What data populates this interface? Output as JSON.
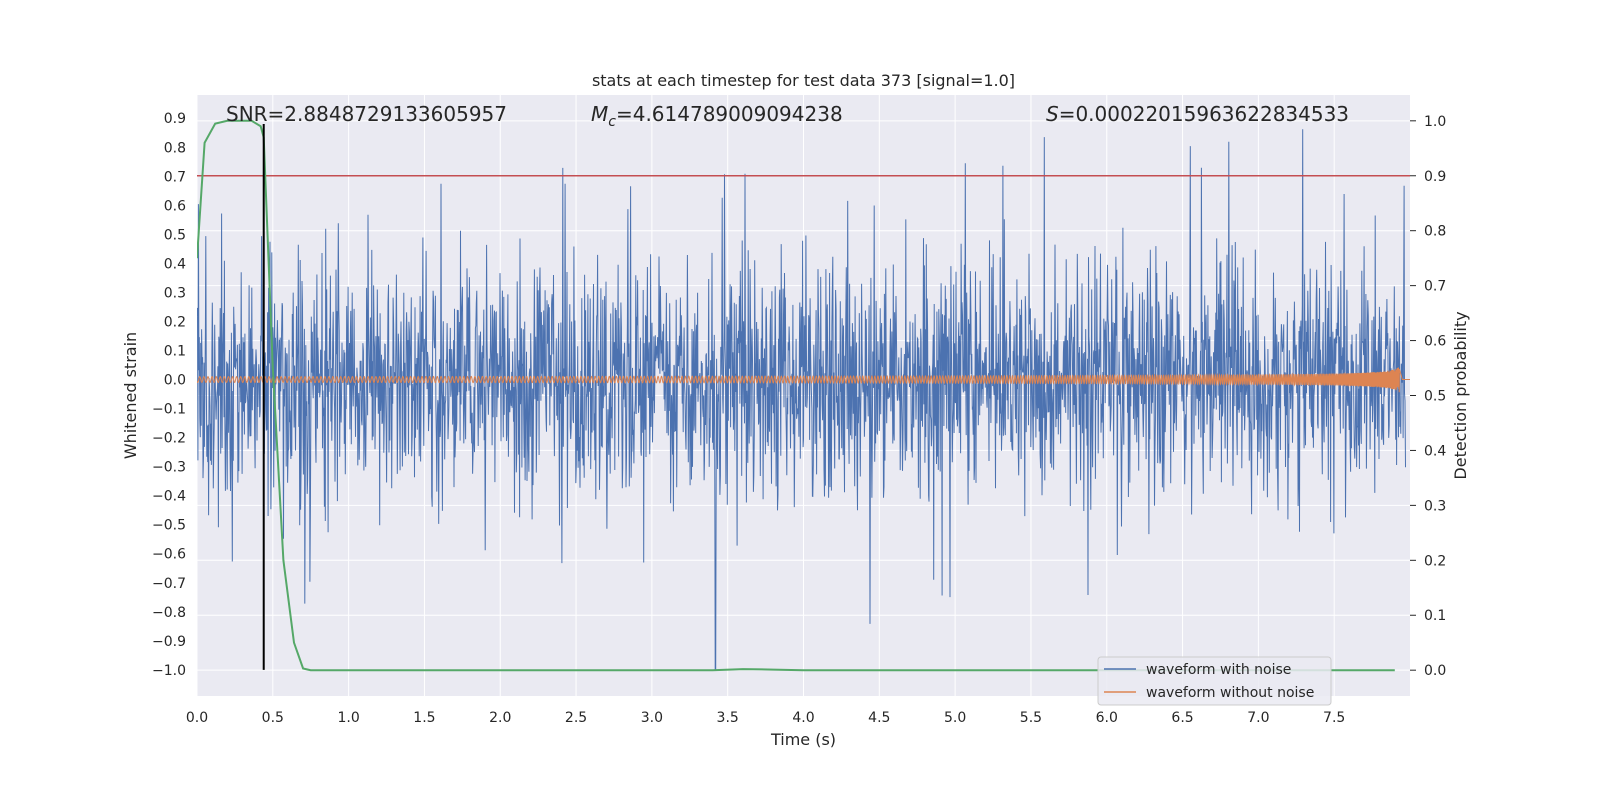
{
  "chart_data": {
    "type": "line",
    "title": "stats at each timestep for test data 373 [signal=1.0]",
    "xlabel": "Time (s)",
    "ylabel": "Whitened strain",
    "y2label": "Detection probability",
    "xlim": [
      0.0,
      8.0
    ],
    "ylim": [
      -1.09,
      0.98
    ],
    "y2lim": [
      -0.047,
      1.047
    ],
    "xticks": [
      0.0,
      0.5,
      1.0,
      1.5,
      2.0,
      2.5,
      3.0,
      3.5,
      4.0,
      4.5,
      5.0,
      5.5,
      6.0,
      6.5,
      7.0,
      7.5
    ],
    "xtick_labels": [
      "0.0",
      "0.5",
      "1.0",
      "1.5",
      "2.0",
      "2.5",
      "3.0",
      "3.5",
      "4.0",
      "4.5",
      "5.0",
      "5.5",
      "6.0",
      "6.5",
      "7.0",
      "7.5"
    ],
    "yticks": [
      0.9,
      0.8,
      0.7,
      0.6,
      0.5,
      0.4,
      0.3,
      0.2,
      0.1,
      0.0,
      -0.1,
      -0.2,
      -0.3,
      -0.4,
      -0.5,
      -0.6,
      -0.7,
      -0.8,
      -0.9,
      -1.0
    ],
    "ytick_labels": [
      "0.9",
      "0.8",
      "0.7",
      "0.6",
      "0.5",
      "0.4",
      "0.3",
      "0.2",
      "0.1",
      "0.0",
      "−0.1",
      "−0.2",
      "−0.3",
      "−0.4",
      "−0.5",
      "−0.6",
      "−0.7",
      "−0.8",
      "−0.9",
      "−1.0"
    ],
    "y2ticks": [
      1.0,
      0.9,
      0.8,
      0.7,
      0.6,
      0.5,
      0.4,
      0.3,
      0.2,
      0.1,
      0.0
    ],
    "y2tick_labels": [
      "1.0",
      "0.9",
      "0.8",
      "0.7",
      "0.6",
      "0.5",
      "0.4",
      "0.3",
      "0.2",
      "0.1",
      "0.0"
    ],
    "grid": true,
    "legend_position": "lower-right",
    "annotations": {
      "snr": "SNR=2.8848729133605957",
      "mc_sym": "M",
      "mc_sub": "c",
      "mc_val": "=4.614789009094238",
      "s_sym": "S",
      "s_val": "=0.00022015963622834533"
    },
    "threshold": {
      "y2": 0.9,
      "color": "#c44e52"
    },
    "marker_line": {
      "x": 0.44,
      "y_from": -1.0,
      "y_to": 0.88,
      "color": "#000000"
    },
    "series": [
      {
        "name": "waveform with noise",
        "color": "#4c72b0",
        "axis": "left",
        "note_envelope": {
          "typical_amplitude": 0.33,
          "occasional_peak": 0.89,
          "deepest_dip": -1.0
        }
      },
      {
        "name": "waveform without noise",
        "color": "#dd8452",
        "axis": "left",
        "chirp": {
          "start_amplitude": 0.01,
          "end_amplitude": 0.06,
          "end_time": 7.93
        }
      },
      {
        "name": "detection probability",
        "color": "#55a868",
        "axis": "right",
        "x": [
          0.0,
          0.05,
          0.12,
          0.2,
          0.3,
          0.36,
          0.42,
          0.44,
          0.5,
          0.57,
          0.64,
          0.7,
          0.75,
          0.8,
          1.0,
          2.0,
          3.0,
          3.4,
          3.6,
          3.8,
          4.0,
          5.0,
          6.0,
          7.0,
          7.9
        ],
        "values": [
          0.75,
          0.96,
          0.995,
          1.0,
          1.0,
          1.0,
          0.99,
          0.97,
          0.55,
          0.2,
          0.05,
          0.003,
          0.0,
          0.0,
          0.0,
          0.0,
          0.0,
          0.0,
          0.002,
          0.001,
          0.0,
          0.0,
          0.0,
          0.0,
          0.0
        ]
      }
    ]
  }
}
